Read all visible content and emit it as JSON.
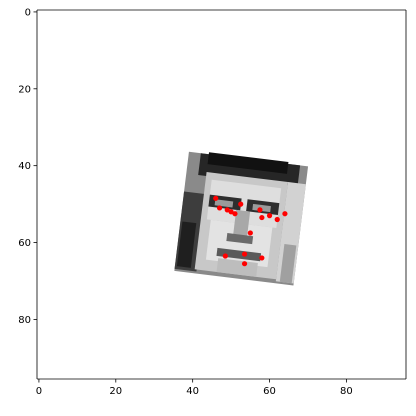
{
  "chart_data": {
    "type": "scatter",
    "title": "",
    "xlabel": "",
    "ylabel": "",
    "xlim": [
      -0.5,
      95.5
    ],
    "ylim": [
      95.5,
      -0.5
    ],
    "y_inverted": true,
    "grid": false,
    "x_ticks": [
      0,
      20,
      40,
      60,
      80
    ],
    "y_ticks": [
      0,
      20,
      40,
      60,
      80
    ],
    "background_image": "grayscale face crop, slightly rotated, occupying roughly x 36-71, y 38-73",
    "series": [
      {
        "color": "#ff0000",
        "points": [
          {
            "x": 46,
            "y": 48.5
          },
          {
            "x": 47,
            "y": 51
          },
          {
            "x": 49,
            "y": 51.5
          },
          {
            "x": 50,
            "y": 52
          },
          {
            "x": 51,
            "y": 52.5
          },
          {
            "x": 52.5,
            "y": 50
          },
          {
            "x": 57.5,
            "y": 51.5
          },
          {
            "x": 58,
            "y": 53.5
          },
          {
            "x": 60,
            "y": 53
          },
          {
            "x": 62,
            "y": 54
          },
          {
            "x": 64,
            "y": 52.5
          },
          {
            "x": 55,
            "y": 57.5
          },
          {
            "x": 48.5,
            "y": 63.5
          },
          {
            "x": 53.5,
            "y": 63
          },
          {
            "x": 58,
            "y": 64
          },
          {
            "x": 53.5,
            "y": 65.5
          }
        ]
      }
    ]
  }
}
